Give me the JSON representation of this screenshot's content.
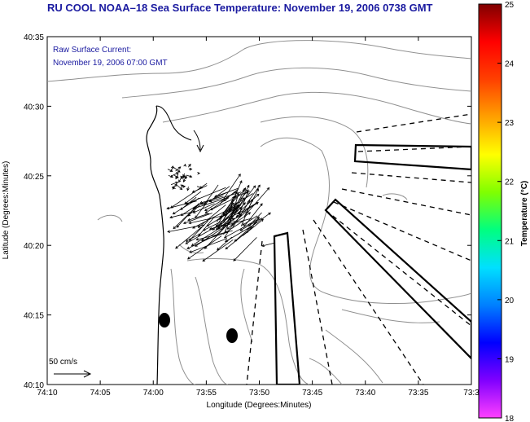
{
  "title": "RU COOL  NOAA–18  Sea Surface Temperature:  November 19, 2006 0738 GMT",
  "annotation": {
    "line1": "Raw Surface Current:",
    "line2": "November 19, 2006 07:00 GMT"
  },
  "axes": {
    "xlabel": "Longitude (Degrees:Minutes)",
    "ylabel": "Latitude (Degrees:Minutes)",
    "xticks": [
      "74:10",
      "74:05",
      "74:00",
      "73:55",
      "73:50",
      "73:45",
      "73:40",
      "73:35",
      "73:3"
    ],
    "yticks": [
      "40:35",
      "40:30",
      "40:25",
      "40:20",
      "40:15",
      "40:10"
    ]
  },
  "scale": {
    "label": "50 cm/s"
  },
  "colorbar": {
    "label": "Temperature (°C)",
    "ticks": [
      "25",
      "24",
      "23",
      "22",
      "21",
      "20",
      "19",
      "18"
    ],
    "min": 18,
    "max": 25,
    "colors": [
      "#ff40ff",
      "#8000ff",
      "#0000ff",
      "#0080ff",
      "#00e0ff",
      "#00ff80",
      "#80ff00",
      "#ffff00",
      "#ffa000",
      "#ff4000",
      "#ff0000",
      "#800000"
    ]
  },
  "colors": {
    "title": "#1a1aa0",
    "contour": "#909090",
    "coast": "#000000"
  }
}
